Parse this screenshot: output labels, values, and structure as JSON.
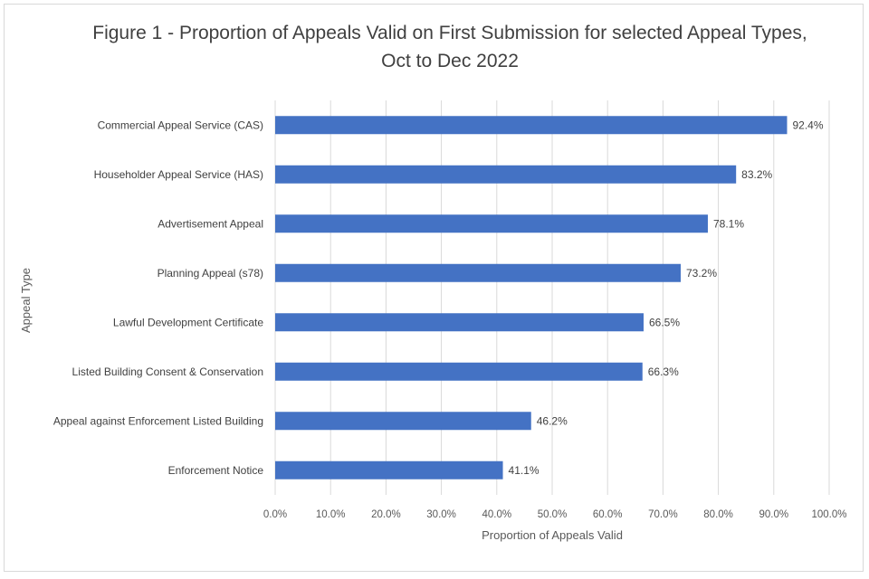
{
  "chart_data": {
    "type": "bar",
    "orientation": "horizontal",
    "title": "Figure 1 - Proportion of Appeals Valid on First Submission for selected Appeal Types,",
    "subtitle": "Oct to Dec 2022",
    "xlabel": "Proportion of Appeals Valid",
    "ylabel": "Appeal Type",
    "xlim": [
      0,
      100
    ],
    "x_ticks": [
      0,
      10,
      20,
      30,
      40,
      50,
      60,
      70,
      80,
      90,
      100
    ],
    "x_tick_labels": [
      "0.0%",
      "10.0%",
      "20.0%",
      "30.0%",
      "40.0%",
      "50.0%",
      "60.0%",
      "70.0%",
      "80.0%",
      "90.0%",
      "100.0%"
    ],
    "grid": true,
    "bar_color": "#4472c4",
    "categories": [
      "Commercial Appeal Service (CAS)",
      "Householder Appeal Service (HAS)",
      "Advertisement Appeal",
      "Planning Appeal (s78)",
      "Lawful Development Certificate",
      "Listed Building Consent & Conservation",
      "Appeal against Enforcement Listed Building",
      "Enforcement Notice"
    ],
    "values": [
      92.4,
      83.2,
      78.1,
      73.2,
      66.5,
      66.3,
      46.2,
      41.1
    ],
    "data_labels": [
      "92.4%",
      "83.2%",
      "78.1%",
      "73.2%",
      "66.5%",
      "66.3%",
      "46.2%",
      "41.1%"
    ]
  }
}
